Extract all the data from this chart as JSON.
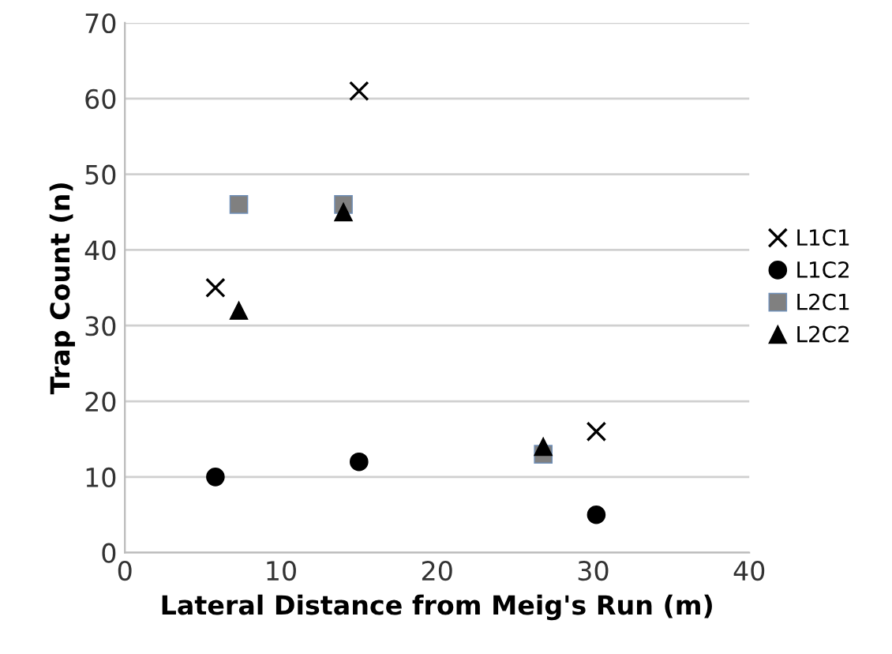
{
  "chart_data": {
    "type": "scatter",
    "xlabel": "Lateral Distance from Meig's Run (m)",
    "ylabel": "Trap Count (n)",
    "xlim": [
      0,
      40
    ],
    "xticks": [
      0,
      10,
      20,
      30,
      40
    ],
    "ylim": [
      0,
      70
    ],
    "yticks": [
      0,
      10,
      20,
      30,
      40,
      50,
      60,
      70
    ],
    "grid": "y",
    "legend": "right",
    "series": [
      {
        "name": "L1C1",
        "color": "#000000",
        "marker": "cross",
        "x": [
          5.8,
          15,
          30.2
        ],
        "values": [
          35,
          61,
          16
        ]
      },
      {
        "name": "L1C2",
        "color": "#000000",
        "marker": "circle",
        "x": [
          5.8,
          15,
          30.2
        ],
        "values": [
          10,
          12,
          5
        ]
      },
      {
        "name": "L2C1",
        "color": "#808080",
        "marker": "square",
        "x": [
          7.3,
          14,
          26.8
        ],
        "values": [
          46,
          46,
          13
        ]
      },
      {
        "name": "L2C2",
        "color": "#000000",
        "marker": "triangle",
        "x": [
          7.3,
          14,
          26.8
        ],
        "values": [
          32,
          45,
          14
        ]
      }
    ]
  }
}
